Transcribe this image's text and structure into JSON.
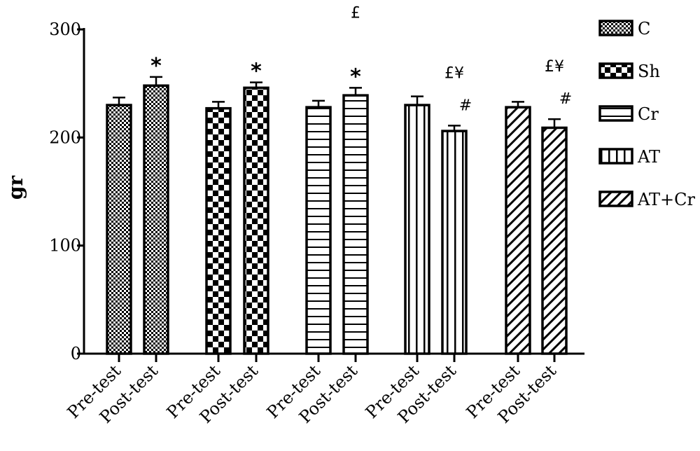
{
  "chart_data": {
    "type": "bar",
    "ylabel": "gr",
    "ylim": [
      0,
      300
    ],
    "yticks": [
      0,
      100,
      200,
      300
    ],
    "categories": [
      "Pre-test",
      "Post-test",
      "Pre-test",
      "Post-test",
      "Pre-test",
      "Post-test",
      "Pre-test",
      "Post-test",
      "Pre-test",
      "Post-test"
    ],
    "groups": [
      {
        "name": "C",
        "pattern": "dots",
        "bars": [
          {
            "label": "Pre-test",
            "value": 230,
            "error": 7,
            "marks": []
          },
          {
            "label": "Post-test",
            "value": 248,
            "error": 8,
            "marks": [
              "*"
            ]
          }
        ]
      },
      {
        "name": "Sh",
        "pattern": "checker",
        "bars": [
          {
            "label": "Pre-test",
            "value": 227,
            "error": 6,
            "marks": []
          },
          {
            "label": "Post-test",
            "value": 246,
            "error": 5,
            "marks": [
              "*"
            ]
          }
        ]
      },
      {
        "name": "Cr",
        "pattern": "hlines",
        "bars": [
          {
            "label": "Pre-test",
            "value": 228,
            "error": 6,
            "marks": []
          },
          {
            "label": "Post-test",
            "value": 239,
            "error": 7,
            "marks": [
              "£",
              "*"
            ]
          }
        ]
      },
      {
        "name": "AT",
        "pattern": "vlines",
        "bars": [
          {
            "label": "Pre-test",
            "value": 230,
            "error": 8,
            "marks": []
          },
          {
            "label": "Post-test",
            "value": 206,
            "error": 5,
            "marks": [
              "£¥",
              "#"
            ]
          }
        ]
      },
      {
        "name": "AT+Cr",
        "pattern": "diag",
        "bars": [
          {
            "label": "Pre-test",
            "value": 228,
            "error": 5,
            "marks": []
          },
          {
            "label": "Post-test",
            "value": 209,
            "error": 8,
            "marks": [
              "£¥",
              "#"
            ]
          }
        ]
      }
    ],
    "legend": {
      "position": "right",
      "entries": [
        "C",
        "Sh",
        "Cr",
        "AT",
        "AT+Cr"
      ]
    },
    "grid": false
  }
}
